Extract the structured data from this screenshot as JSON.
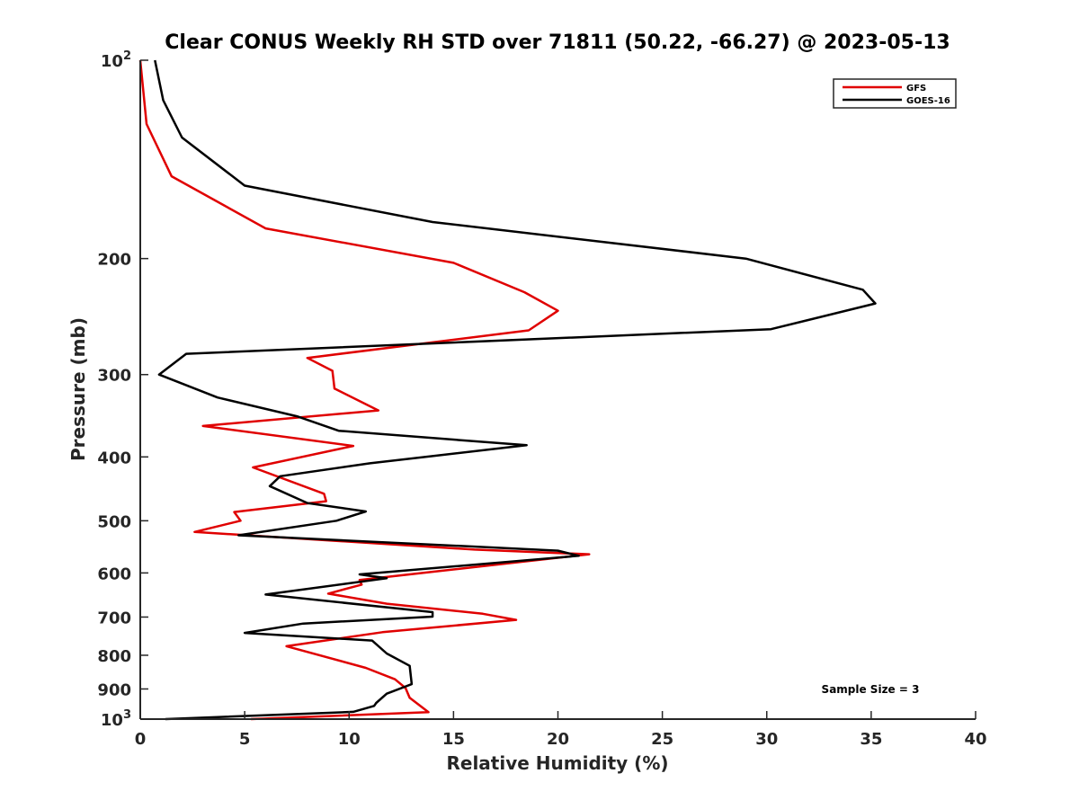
{
  "chart_data": {
    "type": "line",
    "title": "Clear CONUS Weekly RH STD over 71811 (50.22, -66.27) @ 2023-05-13",
    "xlabel": "Relative Humidity (%)",
    "ylabel": "Pressure (mb)",
    "xlim": [
      0,
      40
    ],
    "ylim": [
      100,
      1000
    ],
    "y_scale": "log",
    "y_reversed": true,
    "x_ticks": [
      "0",
      "5",
      "10",
      "15",
      "20",
      "25",
      "30",
      "35",
      "40"
    ],
    "y_ticks": [
      {
        "value": 100,
        "label": "10",
        "sup": "2"
      },
      {
        "value": 200,
        "label": "200",
        "sup": ""
      },
      {
        "value": 300,
        "label": "300",
        "sup": ""
      },
      {
        "value": 400,
        "label": "400",
        "sup": ""
      },
      {
        "value": 500,
        "label": "500",
        "sup": ""
      },
      {
        "value": 600,
        "label": "600",
        "sup": ""
      },
      {
        "value": 700,
        "label": "700",
        "sup": ""
      },
      {
        "value": 800,
        "label": "800",
        "sup": ""
      },
      {
        "value": 900,
        "label": "900",
        "sup": ""
      },
      {
        "value": 1000,
        "label": "10",
        "sup": "3"
      }
    ],
    "legend_position": "top-right",
    "grid": false,
    "annotation": "Sample Size = 3",
    "series": [
      {
        "name": "GFS",
        "color": "#e00000",
        "points": [
          [
            0.0,
            100
          ],
          [
            0.3,
            125
          ],
          [
            1.5,
            150
          ],
          [
            6.0,
            180
          ],
          [
            15.0,
            203
          ],
          [
            18.4,
            225
          ],
          [
            20.0,
            240
          ],
          [
            18.6,
            257
          ],
          [
            8.0,
            283
          ],
          [
            9.2,
            296
          ],
          [
            9.3,
            315
          ],
          [
            11.4,
            340
          ],
          [
            3.0,
            359
          ],
          [
            10.2,
            385
          ],
          [
            5.4,
            415
          ],
          [
            8.8,
            455
          ],
          [
            8.9,
            467
          ],
          [
            4.5,
            485
          ],
          [
            4.8,
            500
          ],
          [
            2.6,
            520
          ],
          [
            16.0,
            553
          ],
          [
            21.5,
            562
          ],
          [
            10.5,
            615
          ],
          [
            10.6,
            625
          ],
          [
            9.0,
            645
          ],
          [
            11.8,
            668
          ],
          [
            16.4,
            692
          ],
          [
            18.0,
            707
          ],
          [
            11.6,
            738
          ],
          [
            7.0,
            775
          ],
          [
            10.8,
            836
          ],
          [
            12.2,
            870
          ],
          [
            12.7,
            897
          ],
          [
            12.9,
            928
          ],
          [
            13.8,
            976
          ],
          [
            5.3,
            1000
          ]
        ]
      },
      {
        "name": "GOES-16",
        "color": "#000000",
        "points": [
          [
            0.7,
            100
          ],
          [
            1.1,
            115
          ],
          [
            2.0,
            131
          ],
          [
            5.0,
            155
          ],
          [
            14.0,
            176
          ],
          [
            29.0,
            200
          ],
          [
            34.6,
            223
          ],
          [
            35.2,
            234
          ],
          [
            30.2,
            256
          ],
          [
            2.2,
            279
          ],
          [
            0.9,
            300
          ],
          [
            3.7,
            325
          ],
          [
            7.5,
            347
          ],
          [
            9.5,
            365
          ],
          [
            18.5,
            384
          ],
          [
            11.0,
            409
          ],
          [
            6.7,
            428
          ],
          [
            6.2,
            443
          ],
          [
            8.0,
            470
          ],
          [
            10.8,
            484
          ],
          [
            9.4,
            500
          ],
          [
            4.7,
            526
          ],
          [
            20.0,
            555
          ],
          [
            21.0,
            565
          ],
          [
            10.5,
            603
          ],
          [
            11.8,
            611
          ],
          [
            6.0,
            647
          ],
          [
            14.0,
            688
          ],
          [
            14.0,
            699
          ],
          [
            7.8,
            716
          ],
          [
            5.0,
            740
          ],
          [
            11.1,
            760
          ],
          [
            11.8,
            795
          ],
          [
            12.9,
            830
          ],
          [
            13.0,
            885
          ],
          [
            11.8,
            915
          ],
          [
            11.3,
            945
          ],
          [
            11.2,
            955
          ],
          [
            10.2,
            975
          ],
          [
            1.2,
            1000
          ]
        ]
      }
    ]
  }
}
